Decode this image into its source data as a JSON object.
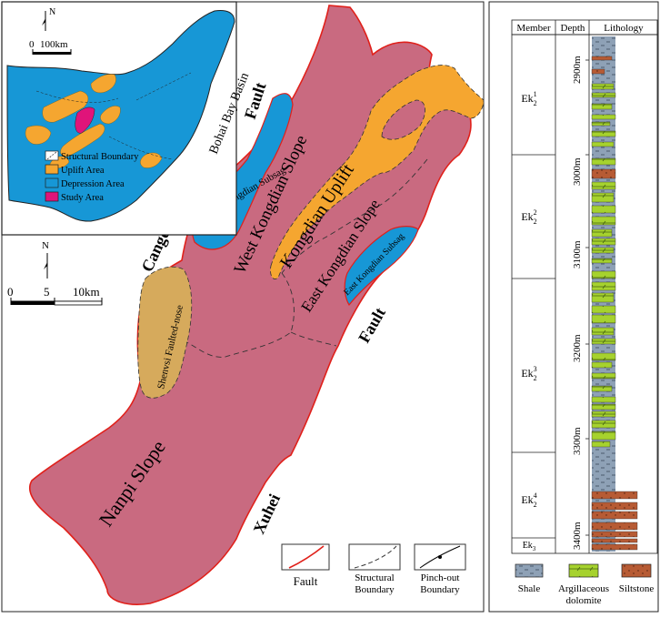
{
  "colors": {
    "slope": "#c96a80",
    "uplift": "#f5a630",
    "subsag": "#1797d6",
    "faulted_nose": "#d6aa5c",
    "study_area": "#e0147a",
    "fault_line": "#e0201a",
    "shale": "#8ea1b6",
    "dolomite": "#a6d22e",
    "siltstone": "#b75b34"
  },
  "inset": {
    "north": "N",
    "scale_zero": "0",
    "scale_label": "100km",
    "basin_name": "Bohai Bay Basin",
    "legend": [
      {
        "label": "Structural Boundary",
        "swatch": "structural"
      },
      {
        "label": "Uplift Area",
        "swatch": "uplift"
      },
      {
        "label": "Depression Area",
        "swatch": "depression"
      },
      {
        "label": "Study Area",
        "swatch": "study"
      }
    ]
  },
  "main_map": {
    "north": "N",
    "scale_ticks": [
      "0",
      "5",
      "10km"
    ],
    "labels": {
      "fault_top": "Fault",
      "cangdong": "Cangdong",
      "west_kongdian_subsag": "West Kongdian  Subsag",
      "west_kongdian_slope": "West Kongdian Slope",
      "kongdian_uplift": "Kongdian Uplift",
      "east_kongdian_slope": "East Kongdian Slope",
      "east_kongdian_subsag": "East Kongdian Subsag",
      "fault_right": "Fault",
      "shenvsi": "Shenvsi Faulted-nose",
      "nanpi": "Nanpi Slope",
      "xuhei": "Xuhei"
    },
    "legend": [
      {
        "label": "Fault"
      },
      {
        "label_lines": [
          "Structural",
          "Boundary"
        ]
      },
      {
        "label_lines": [
          "Pinch-out",
          "Boundary"
        ]
      }
    ]
  },
  "column": {
    "headers": {
      "member": "Member",
      "depth": "Depth",
      "lithology": "Lithology"
    },
    "members": [
      {
        "base": "Ek",
        "sub": "2",
        "sup": "1"
      },
      {
        "base": "Ek",
        "sub": "2",
        "sup": "2"
      },
      {
        "base": "Ek",
        "sub": "2",
        "sup": "3"
      },
      {
        "base": "Ek",
        "sub": "2",
        "sup": "4"
      },
      {
        "base": "Ek",
        "sub": "3",
        "sup": ""
      }
    ],
    "depths": [
      "2900m",
      "3000m",
      "3100m",
      "3200m",
      "3300m",
      "3400m"
    ],
    "legend": [
      {
        "key": "shale",
        "label_lines": [
          "Shale"
        ]
      },
      {
        "key": "dolomite",
        "label_lines": [
          "Argillaceous",
          "dolomite"
        ]
      },
      {
        "key": "siltstone",
        "label_lines": [
          "Siltstone"
        ]
      }
    ]
  }
}
